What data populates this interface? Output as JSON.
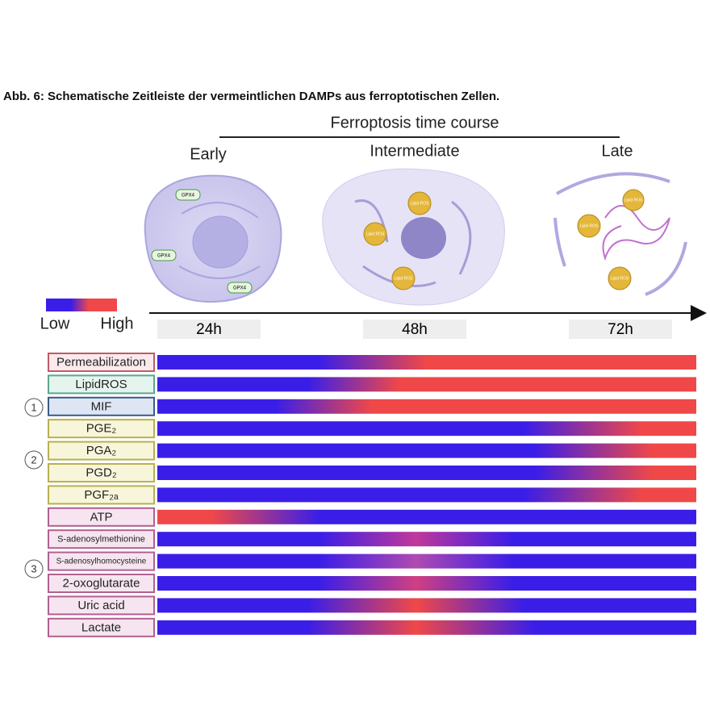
{
  "caption": "Abb. 6: Schematische Zeitleiste der vermeintlichen DAMPs aus ferroptotischen Zellen.",
  "timeline": {
    "title": "Ferroptosis time course",
    "stages": [
      "Early",
      "Intermediate",
      "Late"
    ],
    "times": [
      "24h",
      "48h",
      "72h"
    ],
    "marker_labels": {
      "gpx4": "GPX4",
      "lipid_ros": "Lipid ROS"
    }
  },
  "legend": {
    "low": "Low",
    "high": "High"
  },
  "rows": [
    "Permeabilization",
    "LipidROS",
    "MIF",
    "PGE₂",
    "PGA₂",
    "PGD₂",
    "PGF₂ₐ",
    "ATP",
    "S-adenosylmethionine",
    "S-adenosylhomocysteine",
    "2-oxoglutarate",
    "Uric acid",
    "Lactate"
  ],
  "groups": [
    "1",
    "2",
    "3"
  ]
}
